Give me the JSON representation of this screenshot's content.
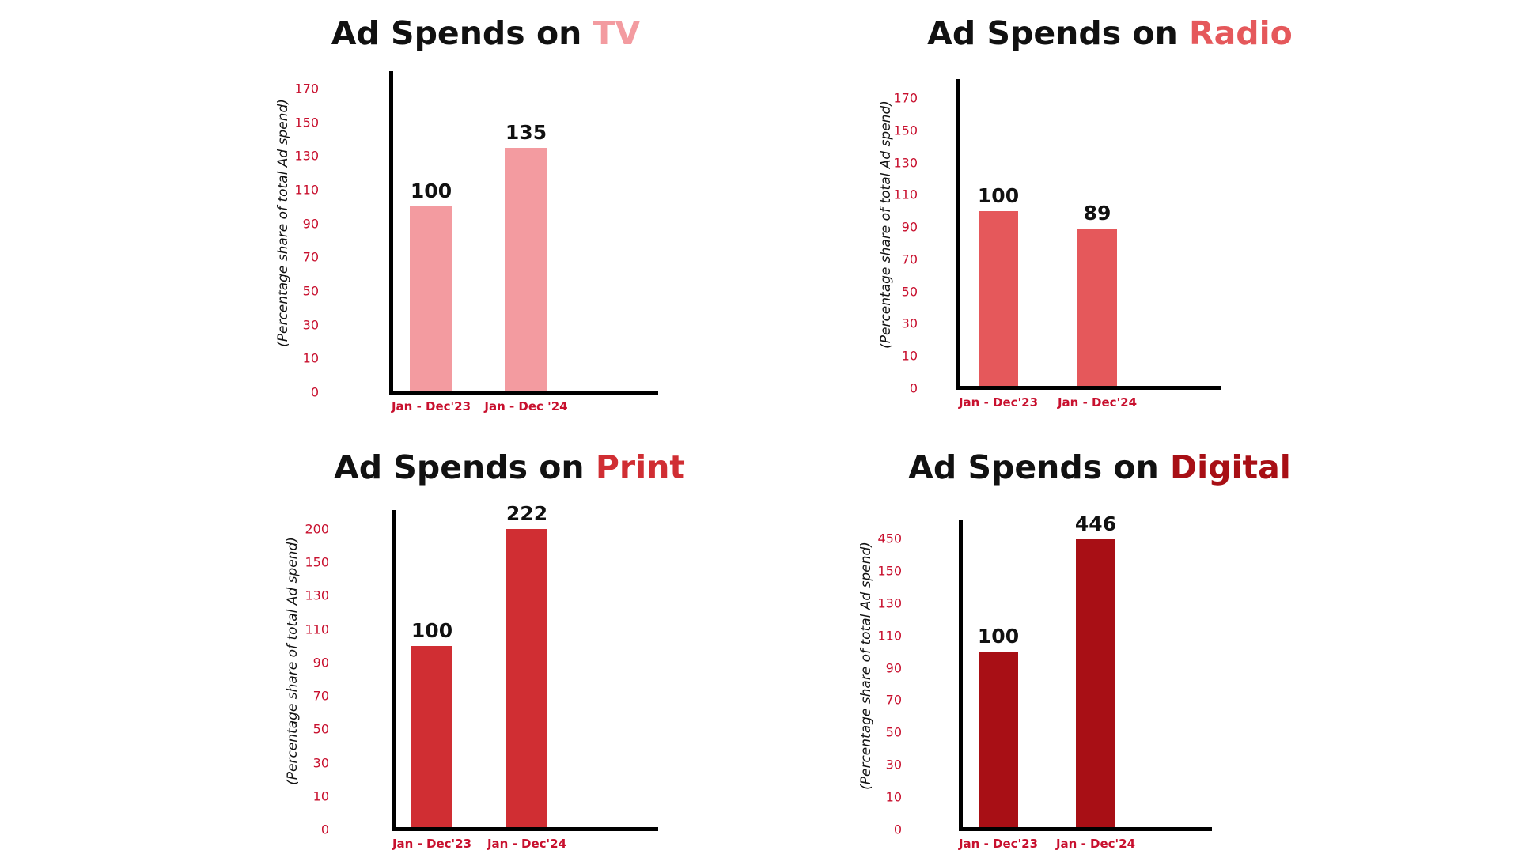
{
  "chart_data": [
    {
      "type": "bar",
      "title_prefix": "Ad Spends on ",
      "title_highlight": "TV",
      "accent": "#f39ba0",
      "ylabel": "(Percentage share of total Ad spend)",
      "yticks": [
        "0",
        "10",
        "30",
        "50",
        "70",
        "90",
        "110",
        "130",
        "150",
        "170"
      ],
      "categories": [
        "Jan - Dec'23",
        "Jan - Dec '24"
      ],
      "values": [
        100,
        135
      ],
      "value_labels": [
        "100",
        "135"
      ]
    },
    {
      "type": "bar",
      "title_prefix": "Ad Spends on ",
      "title_highlight": "Radio",
      "accent": "#e5585b",
      "ylabel": "(Percentage share of total Ad spend)",
      "yticks": [
        "0",
        "10",
        "30",
        "50",
        "70",
        "90",
        "110",
        "130",
        "150",
        "170"
      ],
      "categories": [
        "Jan - Dec'23",
        "Jan - Dec'24"
      ],
      "values": [
        100,
        89
      ],
      "value_labels": [
        "100",
        "89"
      ]
    },
    {
      "type": "bar",
      "title_prefix": "Ad Spends on ",
      "title_highlight": "Print",
      "accent": "#d02e33",
      "ylabel": "(Percentage share of total Ad spend)",
      "yticks": [
        "0",
        "10",
        "30",
        "50",
        "70",
        "90",
        "110",
        "130",
        "150",
        "200"
      ],
      "categories": [
        "Jan - Dec'23",
        "Jan - Dec'24"
      ],
      "values": [
        100,
        222
      ],
      "value_labels": [
        "100",
        "222"
      ]
    },
    {
      "type": "bar",
      "title_prefix": "Ad Spends on ",
      "title_highlight": "Digital",
      "accent": "#a80f15",
      "ylabel": "(Percentage share of total Ad spend)",
      "yticks": [
        "0",
        "10",
        "30",
        "50",
        "70",
        "90",
        "110",
        "130",
        "150",
        "450"
      ],
      "categories": [
        "Jan - Dec'23",
        "Jan - Dec'24"
      ],
      "values": [
        100,
        446
      ],
      "value_labels": [
        "100",
        "446"
      ]
    }
  ]
}
